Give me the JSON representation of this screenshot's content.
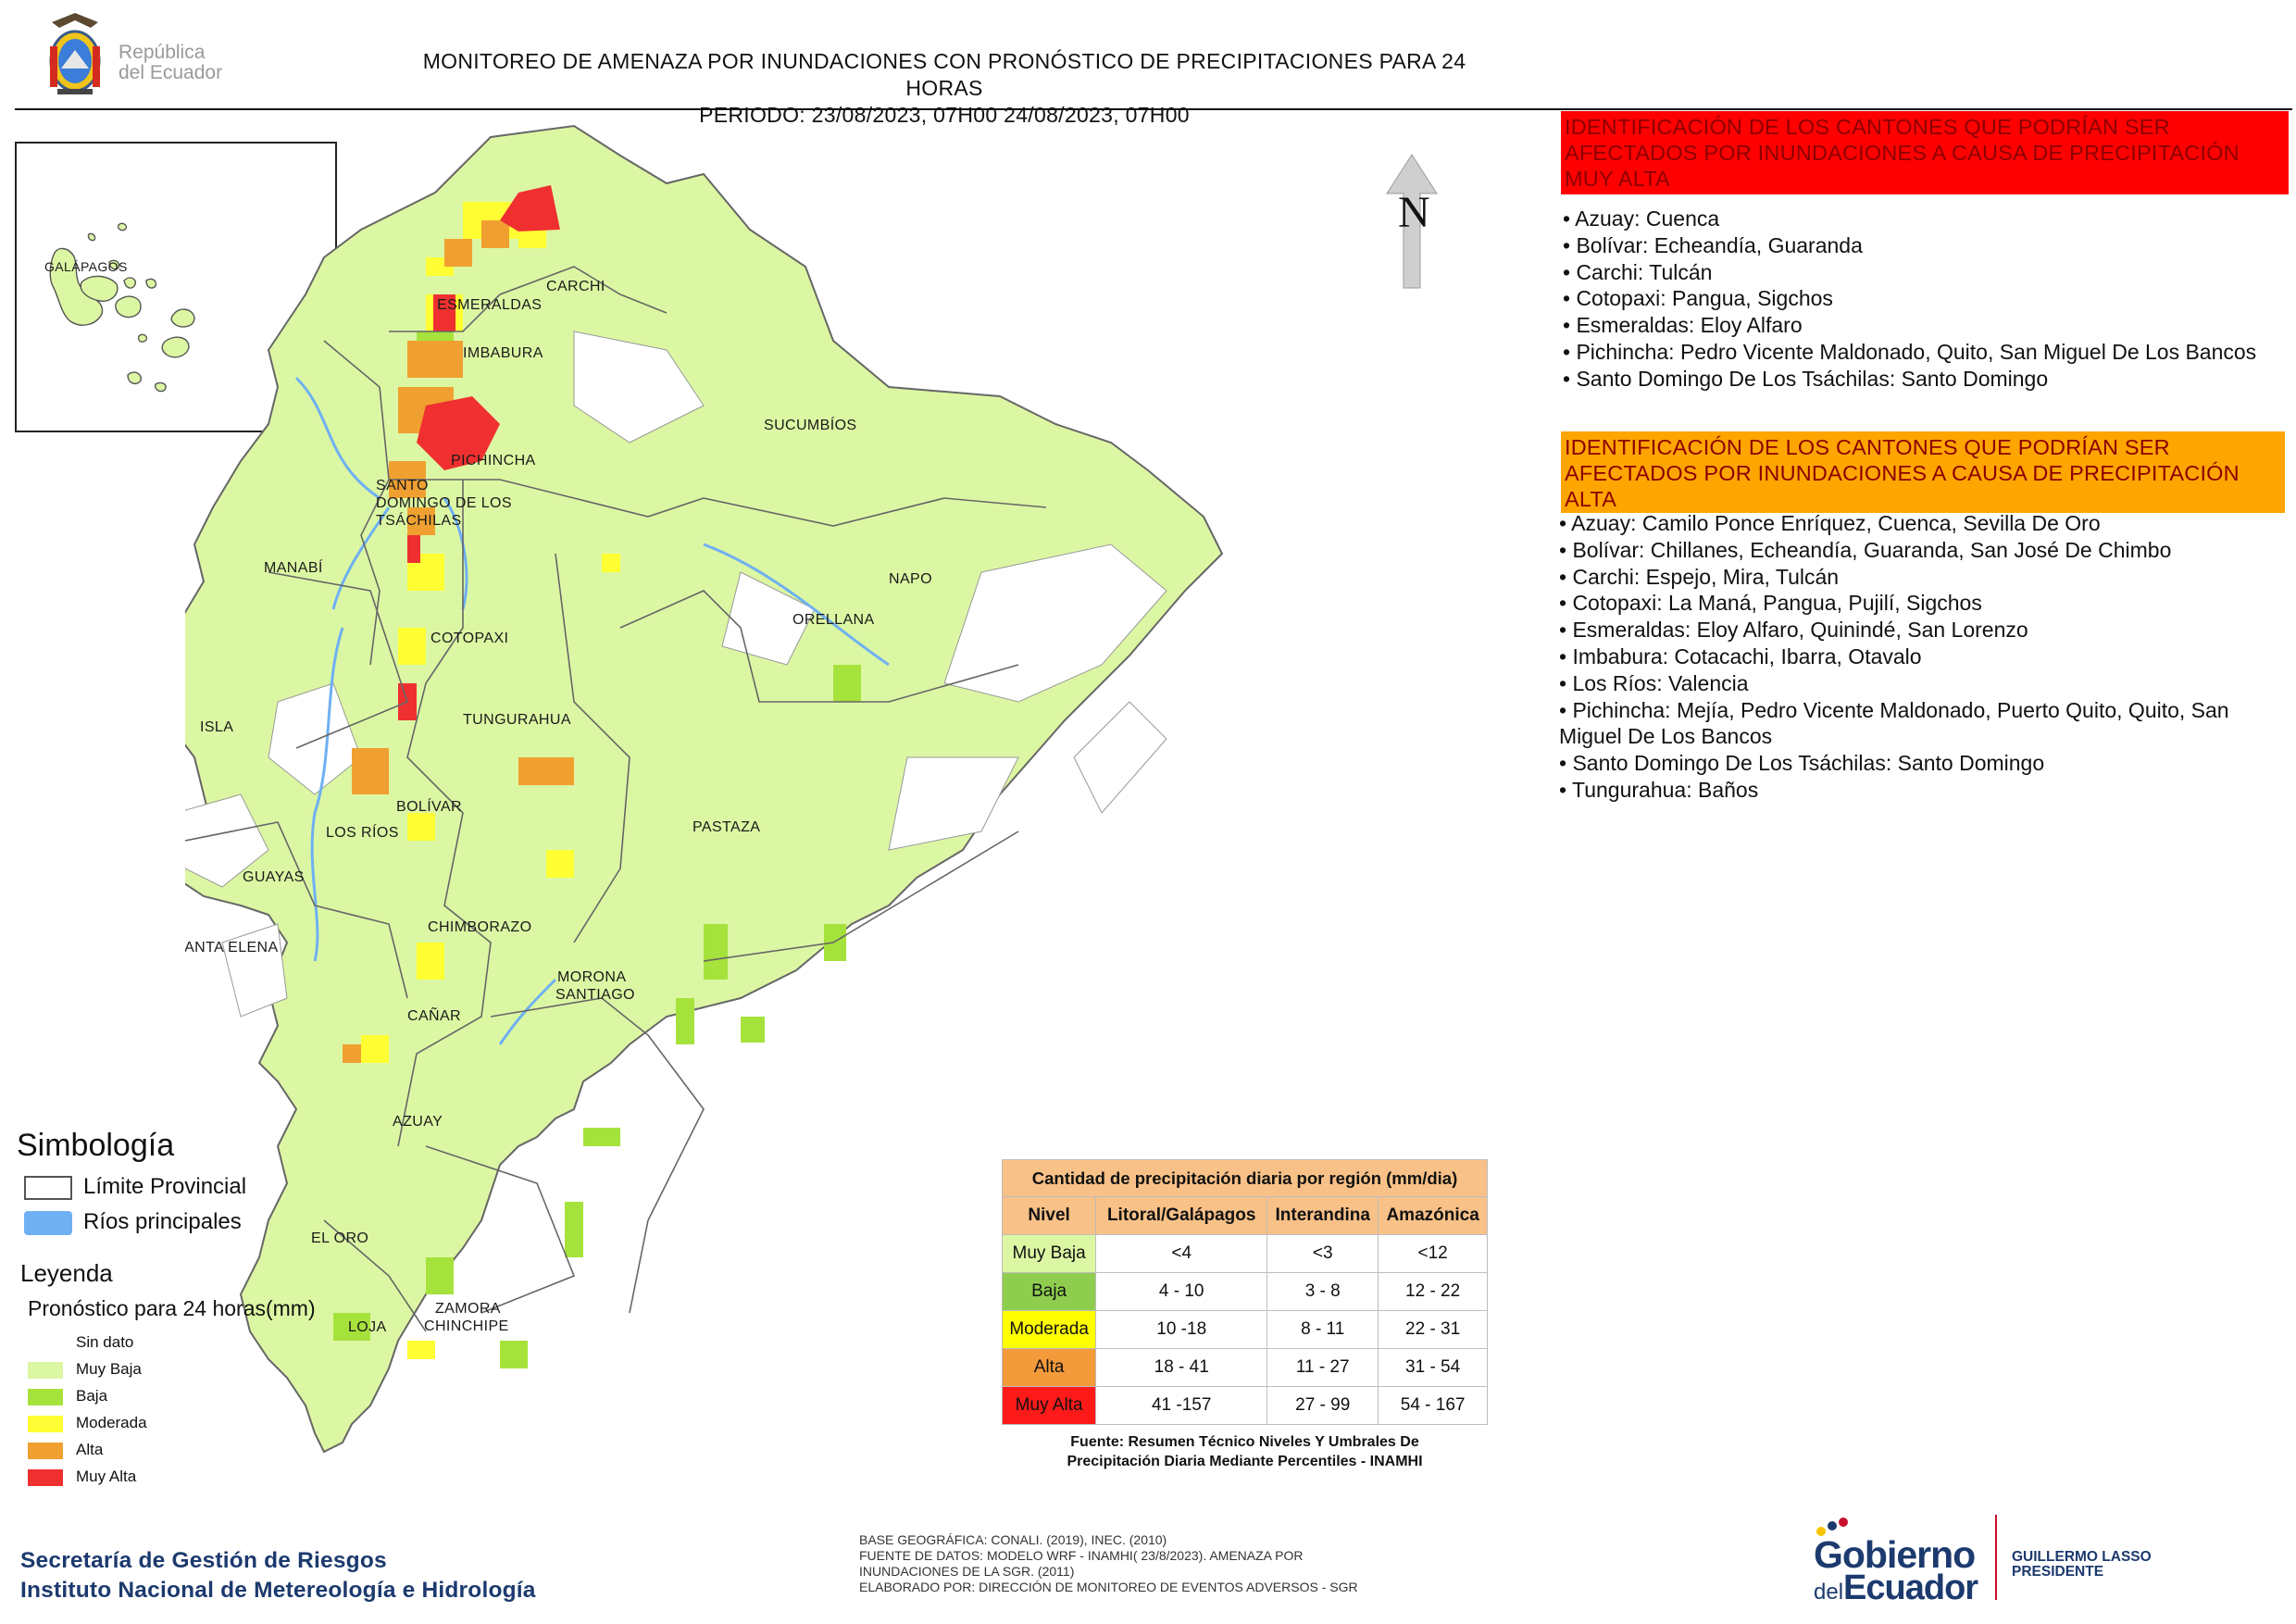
{
  "header": {
    "org_name_line1": "República",
    "org_name_line2": "del Ecuador",
    "title_line1": "MONITOREO DE AMENAZA POR INUNDACIONES  CON PRONÓSTICO DE  PRECIPITACIONES PARA 24 HORAS",
    "title_line2": "PERIODO: 23/08/2023, 07H00 24/08/2023, 07H00"
  },
  "inset": {
    "label": "GALÁPAGOS"
  },
  "north": {
    "letter": "N"
  },
  "map_labels": {
    "carchi": "CARCHI",
    "esmeraldas": "ESMERALDAS",
    "imbabura": "IMBABURA",
    "sucumbios": "SUCUMBÍOS",
    "pichincha": "PICHINCHA",
    "sto_domingo_1": "SANTO",
    "sto_domingo_2": "DOMINGO DE LOS",
    "sto_domingo_3": "TSÁCHILAS",
    "manabi": "MANABÍ",
    "napo": "NAPO",
    "orellana": "ORELLANA",
    "cotopaxi": "COTOPAXI",
    "isla": "ISLA",
    "tungurahua": "TUNGURAHUA",
    "bolivar": "BOLÍVAR",
    "los_rios": "LOS RÍOS",
    "pastaza": "PASTAZA",
    "guayas": "GUAYAS",
    "chimborazo": "CHIMBORAZO",
    "santa_elena": "SANTA ELENA",
    "morona_1": "MORONA",
    "morona_2": "SANTIAGO",
    "canar": "CAÑAR",
    "azuay": "AZUAY",
    "el_oro": "EL ORO",
    "loja": "LOJA",
    "zamora_1": "ZAMORA",
    "zamora_2": "CHINCHIPE"
  },
  "muy_alta": {
    "header": "IDENTIFICACIÓN DE LOS CANTONES QUE PODRÍAN SER AFECTADOS POR INUNDACIONES  A CAUSA DE PRECIPITACIÓN MUY ALTA",
    "items": [
      "• Azuay: Cuenca",
      "• Bolívar: Echeandía, Guaranda",
      "• Carchi: Tulcán",
      "• Cotopaxi: Pangua, Sigchos",
      "• Esmeraldas: Eloy Alfaro",
      "• Pichincha: Pedro Vicente Maldonado, Quito, San Miguel De Los Bancos",
      "• Santo Domingo De Los Tsáchilas: Santo Domingo"
    ]
  },
  "alta": {
    "header": "IDENTIFICACIÓN DE LOS CANTONES QUE  PODRÍAN SER AFECTADOS POR INUNDACIONES  A CAUSA DE PRECIPITACIÓN ALTA",
    "items": [
      "• Azuay: Camilo Ponce Enríquez, Cuenca, Sevilla De Oro",
      "• Bolívar: Chillanes, Echeandía, Guaranda, San José De Chimbo",
      "• Carchi: Espejo, Mira, Tulcán",
      "• Cotopaxi: La Maná, Pangua, Pujilí, Sigchos",
      "• Esmeraldas: Eloy Alfaro, Quinindé, San Lorenzo",
      "• Imbabura: Cotacachi, Ibarra, Otavalo",
      "• Los Ríos: Valencia",
      "• Pichincha: Mejía, Pedro Vicente Maldonado, Puerto Quito, Quito, San Miguel De Los Bancos",
      "• Santo Domingo De Los Tsáchilas: Santo Domingo",
      "• Tungurahua: Baños"
    ]
  },
  "simbologia": {
    "title": "Simbología",
    "limite": "Límite Provincial",
    "rios": "Ríos principales"
  },
  "leyenda": {
    "title": "Leyenda",
    "subtitle": "Pronóstico para 24 horas(mm)",
    "items": [
      {
        "label": "Sin dato",
        "color": "#ffffff"
      },
      {
        "label": "Muy Baja",
        "color": "#dcf7a3"
      },
      {
        "label": "Baja",
        "color": "#a6e23c"
      },
      {
        "label": "Moderada",
        "color": "#ffff33"
      },
      {
        "label": "Alta",
        "color": "#f0a030"
      },
      {
        "label": "Muy Alta",
        "color": "#f03030"
      }
    ]
  },
  "precip_table": {
    "caption": "Cantidad de precipitación diaria por región (mm/dia)",
    "headers": [
      "Nivel",
      "Litoral/Galápagos",
      "Interandina",
      "Amazónica"
    ],
    "rows": [
      {
        "level": "Muy Baja",
        "color": "#dcf7a3",
        "values": [
          "<4",
          "<3",
          "<12"
        ]
      },
      {
        "level": "Baja",
        "color": "#8fcd4f",
        "values": [
          "4 - 10",
          "3 - 8",
          "12 - 22"
        ]
      },
      {
        "level": "Moderada",
        "color": "#ffff00",
        "values": [
          "10 -18",
          "8 - 11",
          "22 - 31"
        ]
      },
      {
        "level": "Alta",
        "color": "#f39a3a",
        "values": [
          "18 - 41",
          "11 - 27",
          "31 - 54"
        ]
      },
      {
        "level": "Muy Alta",
        "color": "#ff1a1a",
        "values": [
          "41 -157",
          "27 - 99",
          "54 - 167"
        ]
      }
    ],
    "source_line1": "Fuente: Resumen Técnico Niveles Y Umbrales De",
    "source_line2": "Precipitación Diaria Mediante Percentiles - INAMHI"
  },
  "footer": {
    "org_line1": "Secretaría de Gestión de Riesgos",
    "org_line2": "Instituto Nacional de Metereología e Hidrología",
    "credits_line1": "BASE GEOGRÁFICA: CONALI. (2019), INEC. (2010)",
    "credits_line2": "FUENTE DE DATOS: MODELO WRF - INAMHI( 23/8/2023).  AMENAZA POR",
    "credits_line3": "INUNDACIONES DE LA SGR. (2011)",
    "credits_line4": "ELABORADO POR: DIRECCIÓN DE MONITOREO DE EVENTOS ADVERSOS - SGR",
    "gob_line1": "Gobierno",
    "gob_line2_small": "del",
    "gob_line2": "Ecuador",
    "pres_line1": "GUILLERMO LASSO",
    "pres_line2": "PRESIDENTE"
  },
  "colors": {
    "muy_baja": "#dcf7a3",
    "baja": "#a6e23c",
    "moderada": "#ffff33",
    "alta": "#f0a030",
    "muy_alta": "#f03030",
    "rivers": "#6fb0f2",
    "header_red": "#ff0000",
    "header_orange": "#ffa500"
  }
}
